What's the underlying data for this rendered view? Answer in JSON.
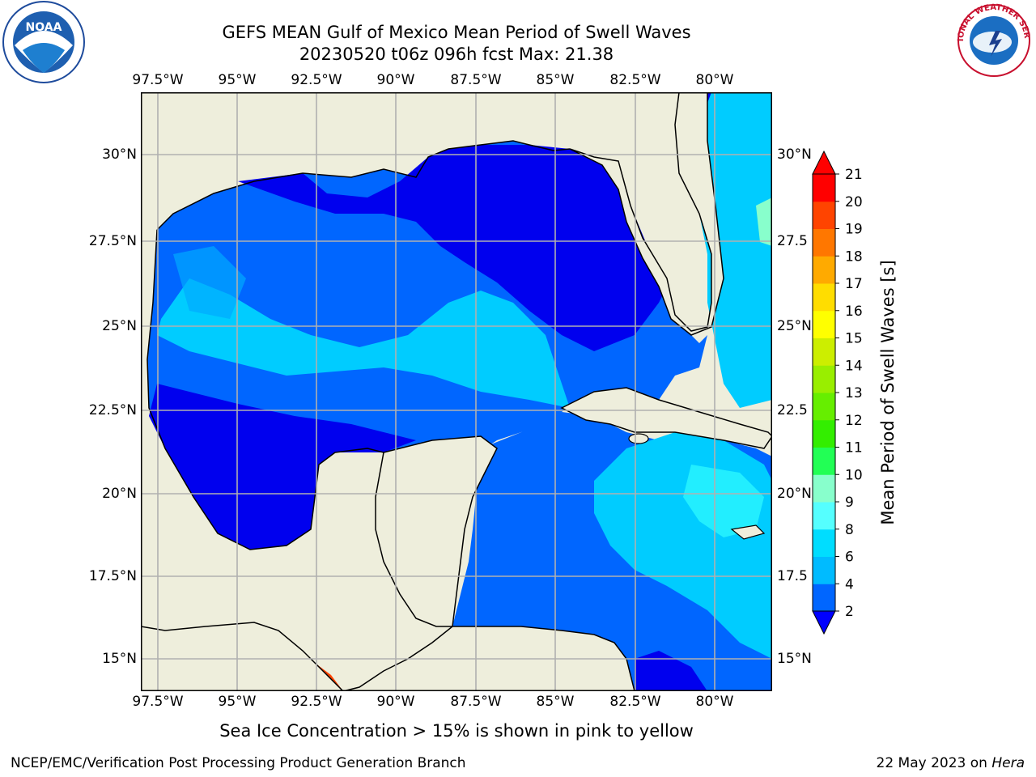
{
  "header": {
    "title_line1": "GEFS MEAN Gulf of Mexico Mean Period of Swell Waves",
    "title_line2": "20230520 t06z 096h fcst   Max: 21.38"
  },
  "logos": {
    "noaa_text": "NOAA",
    "nws_text": "NATIONAL WEATHER SERVICE"
  },
  "map": {
    "lon_ticks": [
      "97.5°W",
      "95°W",
      "92.5°W",
      "90°W",
      "87.5°W",
      "85°W",
      "82.5°W",
      "80°W"
    ],
    "lat_ticks_left": [
      "30°N",
      "27.5°N",
      "25°N",
      "22.5°N",
      "20°N",
      "17.5°N",
      "15°N"
    ],
    "lat_ticks_right": [
      "30°N",
      "27.5",
      "25°N",
      "22.5",
      "20°N",
      "17.5",
      "15°N"
    ],
    "land_color": "#eeeedc",
    "coast_color": "#000000",
    "grid_color": "#b0b0b0"
  },
  "colorbar": {
    "label": "Mean Period of Swell Waves [s]",
    "tick_labels": [
      "2",
      "4",
      "6",
      "8",
      "9",
      "10",
      "11",
      "12",
      "13",
      "14",
      "15",
      "16",
      "17",
      "18",
      "19",
      "20",
      "21"
    ],
    "colors": [
      "#0000ff",
      "#0066ff",
      "#00bbff",
      "#00ddff",
      "#55ffff",
      "#88ffcc",
      "#22ff55",
      "#33ee00",
      "#66ee00",
      "#99ee00",
      "#ccee00",
      "#ffff00",
      "#ffdd00",
      "#ffaa00",
      "#ff7700",
      "#ff4400",
      "#ff0000"
    ]
  },
  "subtitle": "Sea Ice Concentration > 15% is shown in pink to yellow",
  "footer": {
    "left": "NCEP/EMC/Verification Post Processing Product Generation Branch",
    "right_prefix": "22 May 2023 on ",
    "right_host": "Hera"
  }
}
